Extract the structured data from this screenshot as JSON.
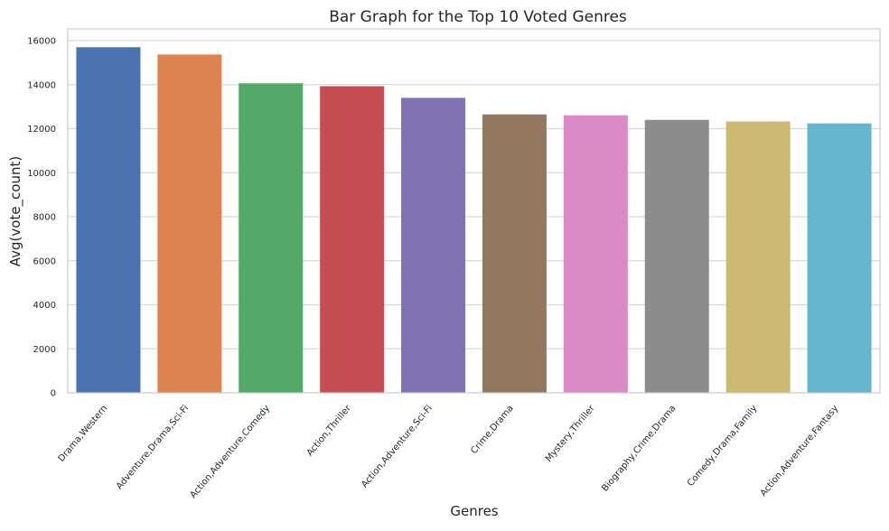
{
  "chart_data": {
    "type": "bar",
    "title": "Bar Graph for the Top 10 Voted Genres",
    "xlabel": "Genres",
    "ylabel": "Avg(vote_count)",
    "ylim": [
      0,
      16000
    ],
    "yticks": [
      0,
      2000,
      4000,
      6000,
      8000,
      10000,
      12000,
      14000,
      16000
    ],
    "grid": true,
    "categories": [
      "Drama,Western",
      "Adventure,Drama,Sci-Fi",
      "Action,Adventure,Comedy",
      "Action,Thriller",
      "Action,Adventure,Sci-Fi",
      "Crime,Drama",
      "Mystery,Thriller",
      "Biography,Crime,Drama",
      "Comedy,Drama,Family",
      "Action,Adventure,Fantasy"
    ],
    "values": [
      15700,
      15370,
      14060,
      13930,
      13400,
      12650,
      12610,
      12400,
      12330,
      12240
    ],
    "colors": [
      "#4c72b0",
      "#dd8452",
      "#55a868",
      "#c44e52",
      "#8172b3",
      "#937860",
      "#da8bc3",
      "#8c8c8c",
      "#ccb974",
      "#64b5cd"
    ]
  }
}
